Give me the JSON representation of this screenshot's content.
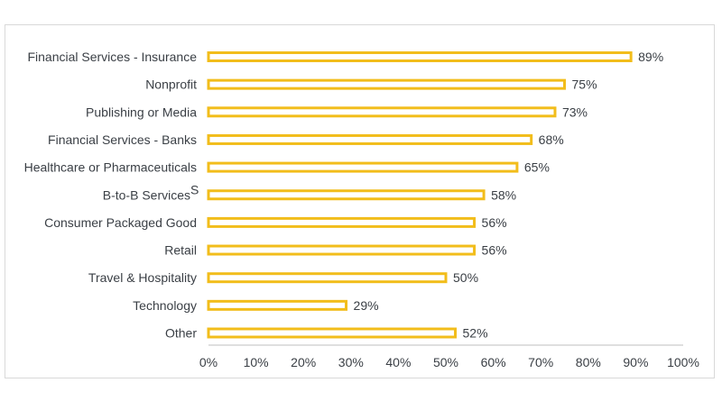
{
  "chart_data": {
    "type": "bar",
    "orientation": "horizontal",
    "title": "",
    "xlabel": "",
    "ylabel": "",
    "categories": [
      {
        "label": "Financial Services - Insurance",
        "superscript": ""
      },
      {
        "label": "Nonprofit",
        "superscript": ""
      },
      {
        "label": "Publishing or Media",
        "superscript": ""
      },
      {
        "label": "Financial Services - Banks",
        "superscript": ""
      },
      {
        "label": "Healthcare or Pharmaceuticals",
        "superscript": ""
      },
      {
        "label": "B-to-B Services",
        "superscript": "S"
      },
      {
        "label": "Consumer Packaged Good",
        "superscript": ""
      },
      {
        "label": "Retail",
        "superscript": ""
      },
      {
        "label": "Travel & Hospitality",
        "superscript": ""
      },
      {
        "label": "Technology",
        "superscript": ""
      },
      {
        "label": "Other",
        "superscript": ""
      }
    ],
    "values": [
      89,
      75,
      73,
      68,
      65,
      58,
      56,
      56,
      50,
      29,
      52
    ],
    "value_labels": [
      "89%",
      "75%",
      "73%",
      "68%",
      "65%",
      "58%",
      "56%",
      "56%",
      "50%",
      "29%",
      "52%"
    ],
    "xlim": [
      0,
      100
    ],
    "x_ticks": [
      0,
      10,
      20,
      30,
      40,
      50,
      60,
      70,
      80,
      90,
      100
    ],
    "x_tick_labels": [
      "0%",
      "10%",
      "20%",
      "30%",
      "40%",
      "50%",
      "60%",
      "70%",
      "80%",
      "90%",
      "100%"
    ],
    "grid": false,
    "legend": "none",
    "colors": {
      "bar_outline": "#f2bd1b",
      "bar_fill": "#ffffff",
      "text": "#3a3f45",
      "axis": "#bfbfbf",
      "frame": "#d9d9d9"
    }
  }
}
